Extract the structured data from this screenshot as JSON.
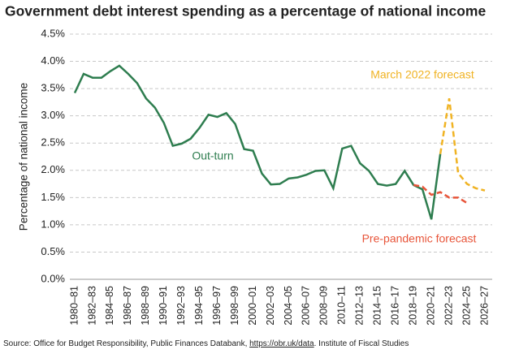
{
  "chart_data": {
    "type": "line",
    "title": "Government debt interest spending as a percentage of national income",
    "y_label": "Percentage of national income",
    "categories": [
      "1980–81",
      null,
      "1982–83",
      null,
      "1984–85",
      null,
      "1986–87",
      null,
      "1988–89",
      null,
      "1990–91",
      null,
      "1992–93",
      null,
      "1994–95",
      null,
      "1996–97",
      null,
      "1998–99",
      null,
      "2000–01",
      null,
      "2002–03",
      null,
      "2004–05",
      null,
      "2006–07",
      null,
      "2008–09",
      null,
      "2010–11",
      null,
      "2012–13",
      null,
      "2014–15",
      null,
      "2016–17",
      null,
      "2018–19",
      null,
      "2020–21",
      null,
      "2022–23",
      null,
      "2024–25",
      null,
      "2026–27"
    ],
    "series": [
      {
        "name": "Out-turn",
        "color": "#2e7d4f",
        "style": "solid",
        "values": [
          3.42,
          3.77,
          3.7,
          3.7,
          3.82,
          3.92,
          3.77,
          3.6,
          3.32,
          3.15,
          2.87,
          2.45,
          2.49,
          2.58,
          2.78,
          3.02,
          2.98,
          3.05,
          2.85,
          2.39,
          2.36,
          1.94,
          1.74,
          1.75,
          1.85,
          1.87,
          1.92,
          1.99,
          2.0,
          1.67,
          2.4,
          2.45,
          2.13,
          1.99,
          1.75,
          1.72,
          1.75,
          1.99,
          1.73,
          1.65,
          1.1,
          2.3,
          null,
          null,
          null,
          null,
          null
        ]
      },
      {
        "name": "March 2022 forecast",
        "color": "#f0b323",
        "style": "dashed",
        "values": [
          null,
          null,
          null,
          null,
          null,
          null,
          null,
          null,
          null,
          null,
          null,
          null,
          null,
          null,
          null,
          null,
          null,
          null,
          null,
          null,
          null,
          null,
          null,
          null,
          null,
          null,
          null,
          null,
          null,
          null,
          null,
          null,
          null,
          null,
          null,
          null,
          null,
          null,
          null,
          null,
          null,
          2.3,
          3.32,
          1.95,
          1.75,
          1.67,
          1.63
        ]
      },
      {
        "name": "Pre-pandemic forecast",
        "color": "#e8553a",
        "style": "dashed",
        "values": [
          null,
          null,
          null,
          null,
          null,
          null,
          null,
          null,
          null,
          null,
          null,
          null,
          null,
          null,
          null,
          null,
          null,
          null,
          null,
          null,
          null,
          null,
          null,
          null,
          null,
          null,
          null,
          null,
          null,
          null,
          null,
          null,
          null,
          null,
          null,
          null,
          null,
          null,
          1.73,
          1.7,
          1.55,
          1.6,
          1.5,
          1.5,
          1.4,
          null,
          null
        ]
      }
    ],
    "ylim": [
      0,
      4.5
    ],
    "yticks": [
      {
        "value": 0,
        "label": "0.0%"
      },
      {
        "value": 0.5,
        "label": "0.5%"
      },
      {
        "value": 1,
        "label": "1.0%"
      },
      {
        "value": 1.5,
        "label": "1.5%"
      },
      {
        "value": 2,
        "label": "2.0%"
      },
      {
        "value": 2.5,
        "label": "2.5%"
      },
      {
        "value": 3,
        "label": "3.0%"
      },
      {
        "value": 3.5,
        "label": "3.5%"
      },
      {
        "value": 4,
        "label": "4.0%"
      },
      {
        "value": 4.5,
        "label": "4.5%"
      }
    ],
    "grid": true,
    "source": {
      "prefix": "Source: Office for Budget Responsibility, Public Finances Databank, ",
      "link": "https://obr.uk/data",
      "suffix": ". Institute of Fiscal Studies"
    }
  }
}
